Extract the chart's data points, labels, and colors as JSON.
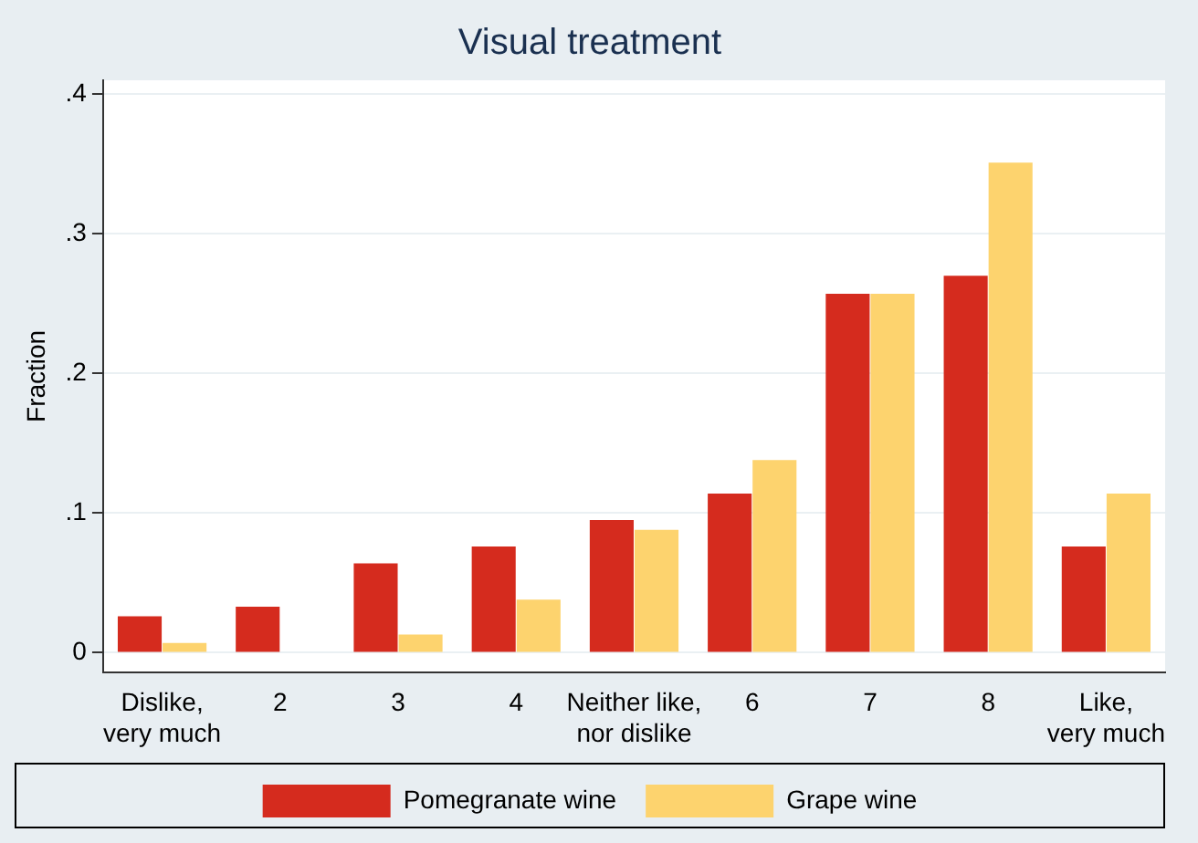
{
  "chart_data": {
    "type": "bar",
    "title": "Visual treatment",
    "ylabel": "Fraction",
    "categories": [
      "Dislike,\nvery much",
      "2",
      "3",
      "4",
      "Neither like,\nnor dislike",
      "6",
      "7",
      "8",
      "Like,\nvery much"
    ],
    "series": [
      {
        "name": "Pomegranate wine",
        "color": "#d52b1e",
        "values": [
          0.026,
          0.033,
          0.064,
          0.076,
          0.095,
          0.114,
          0.257,
          0.27,
          0.076
        ]
      },
      {
        "name": "Grape wine",
        "color": "#fdd36e",
        "values": [
          0.007,
          0,
          0.013,
          0.038,
          0.088,
          0.138,
          0.257,
          0.351,
          0.114
        ]
      }
    ],
    "ylim": [
      -0.014,
      0.41
    ],
    "yticks": [
      {
        "value": 0,
        "label": "0"
      },
      {
        "value": 0.1,
        "label": ".1"
      },
      {
        "value": 0.2,
        "label": ".2"
      },
      {
        "value": 0.3,
        "label": ".3"
      },
      {
        "value": 0.4,
        "label": ".4"
      }
    ],
    "grid": "y",
    "legend": "bottom"
  }
}
